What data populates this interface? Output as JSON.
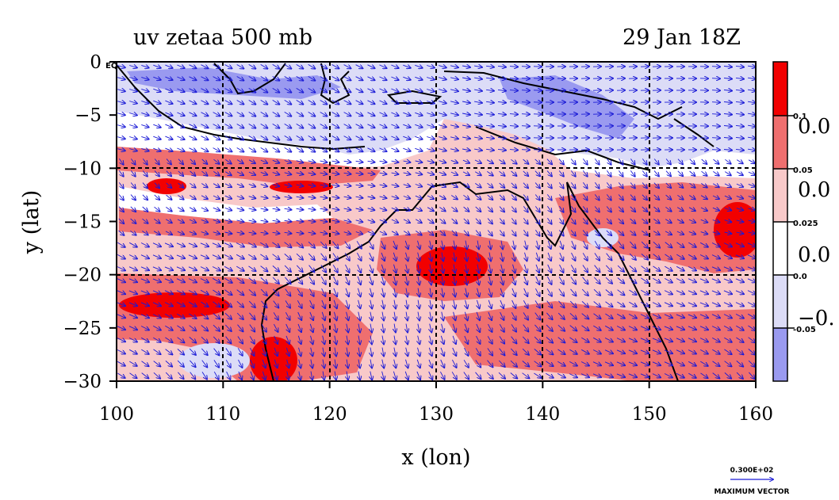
{
  "title_left": "uv zetaa 500 mb",
  "title_right": "29 Jan 18Z",
  "x_axis_label": "x (lon)",
  "y_axis_label": "y (lat)",
  "x_ticks": [
    "100",
    "110",
    "120",
    "130",
    "140",
    "150",
    "160"
  ],
  "y_ticks": [
    "0",
    "−5",
    "−10",
    "−15",
    "−20",
    "−25",
    "−30"
  ],
  "eq_label": "EQ",
  "colorbar": {
    "small_labels": [
      "0.1",
      "0.05",
      "0.025",
      "0.0",
      "-0.05"
    ],
    "large_labels": [
      "0.0",
      "0.0",
      "0.0",
      "−0."
    ],
    "colors": [
      "#f20000",
      "#ef6f6f",
      "#f8c9c9",
      "#ffffff",
      "#dcdcf7",
      "#9a9af0"
    ]
  },
  "reference_vector": {
    "value": "0.300E+02",
    "label": "MAXIMUM VECTOR"
  },
  "map_extent": {
    "lon": [
      100,
      160
    ],
    "lat": [
      -30,
      0
    ]
  },
  "gridlines": "dashed, every 10°",
  "colors": {
    "vector": "#1a1ad6",
    "coast": "#000000",
    "contour": "#d00000"
  }
}
